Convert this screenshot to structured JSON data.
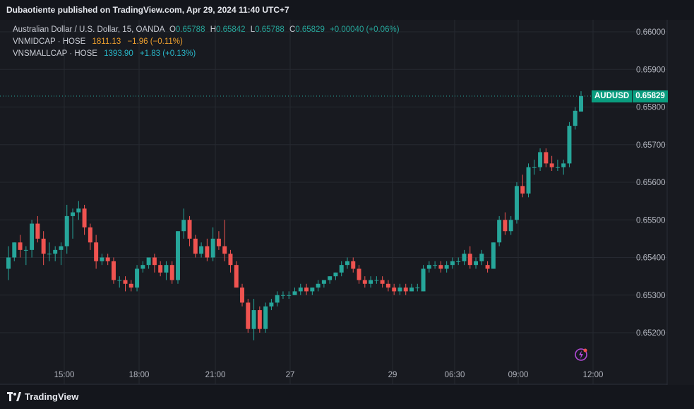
{
  "header": {
    "published": "Dubaotiente published on TradingView.com, Apr 29, 2024 11:40 UTC+7"
  },
  "legend": {
    "main": {
      "name": "Australian Dollar / U.S. Dollar, 15, OANDA",
      "o_label": "O",
      "o": "0.65788",
      "h_label": "H",
      "h": "0.65842",
      "l_label": "L",
      "l": "0.65788",
      "c_label": "C",
      "c": "0.65829",
      "change": "+0.00040 (+0.06%)"
    },
    "mid": {
      "name": "VNMIDCAP · HOSE",
      "value": "1811.13",
      "change": "−1.96 (−0.11%)"
    },
    "small": {
      "name": "VNSMALLCAP · HOSE",
      "value": "1393.90",
      "change": "+1.83 (+0.13%)"
    }
  },
  "price_tag": {
    "symbol": "AUDUSD",
    "value": "0.65829"
  },
  "footer": {
    "brand": "TradingView"
  },
  "colors": {
    "up": "#26a69a",
    "down": "#ef5350",
    "grid": "#262931",
    "axis_text": "#b2b5be",
    "background": "#181a20"
  },
  "chart_data": {
    "type": "candlestick",
    "title": "Australian Dollar / U.S. Dollar, 15, OANDA",
    "y_ticks": [
      "0.66000",
      "0.65900",
      "0.65800",
      "0.65700",
      "0.65600",
      "0.65500",
      "0.65400",
      "0.65300",
      "0.65200"
    ],
    "x_ticks": [
      "15:00",
      "18:00",
      "21:00",
      "27",
      "29",
      "06:30",
      "09:00",
      "12:00"
    ],
    "ylim": [
      0.6515,
      0.6604
    ],
    "grid": true,
    "last_price": 0.65829,
    "candles": [
      [
        0.6537,
        0.6543,
        0.6534,
        0.654
      ],
      [
        0.654,
        0.6544,
        0.6539,
        0.6544
      ],
      [
        0.6544,
        0.6546,
        0.654,
        0.6542
      ],
      [
        0.6542,
        0.6543,
        0.6538,
        0.6542
      ],
      [
        0.6542,
        0.655,
        0.654,
        0.6549
      ],
      [
        0.6549,
        0.6551,
        0.6544,
        0.6545
      ],
      [
        0.6545,
        0.6547,
        0.6538,
        0.6541
      ],
      [
        0.6541,
        0.6544,
        0.6539,
        0.6541
      ],
      [
        0.6541,
        0.6543,
        0.6539,
        0.6542
      ],
      [
        0.6542,
        0.6544,
        0.6538,
        0.6543
      ],
      [
        0.6543,
        0.6554,
        0.6541,
        0.6551
      ],
      [
        0.6551,
        0.6553,
        0.6545,
        0.6552
      ],
      [
        0.6552,
        0.6555,
        0.655,
        0.6553
      ],
      [
        0.6553,
        0.6554,
        0.6546,
        0.6548
      ],
      [
        0.6548,
        0.6549,
        0.6542,
        0.6544
      ],
      [
        0.6544,
        0.6546,
        0.6537,
        0.6539
      ],
      [
        0.6539,
        0.6541,
        0.6538,
        0.654
      ],
      [
        0.654,
        0.6541,
        0.6538,
        0.6539
      ],
      [
        0.6539,
        0.654,
        0.6533,
        0.6534
      ],
      [
        0.6534,
        0.6535,
        0.6532,
        0.6534
      ],
      [
        0.6534,
        0.6535,
        0.6531,
        0.6533
      ],
      [
        0.6533,
        0.6534,
        0.6531,
        0.6532
      ],
      [
        0.6532,
        0.6538,
        0.6531,
        0.6537
      ],
      [
        0.6537,
        0.6539,
        0.6536,
        0.6538
      ],
      [
        0.6538,
        0.654,
        0.6537,
        0.654
      ],
      [
        0.654,
        0.6541,
        0.6536,
        0.6538
      ],
      [
        0.6538,
        0.6539,
        0.6535,
        0.6536
      ],
      [
        0.6536,
        0.6539,
        0.6534,
        0.6538
      ],
      [
        0.6538,
        0.6539,
        0.6533,
        0.6534
      ],
      [
        0.6534,
        0.6547,
        0.6533,
        0.6547
      ],
      [
        0.6547,
        0.6553,
        0.6545,
        0.655
      ],
      [
        0.655,
        0.6551,
        0.6543,
        0.6545
      ],
      [
        0.6545,
        0.6546,
        0.654,
        0.6541
      ],
      [
        0.6541,
        0.6544,
        0.654,
        0.6543
      ],
      [
        0.6543,
        0.6545,
        0.6539,
        0.654
      ],
      [
        0.654,
        0.6548,
        0.6539,
        0.6545
      ],
      [
        0.6545,
        0.6547,
        0.6542,
        0.6543
      ],
      [
        0.6543,
        0.655,
        0.6539,
        0.6541
      ],
      [
        0.6541,
        0.6542,
        0.6536,
        0.6538
      ],
      [
        0.6538,
        0.6539,
        0.6532,
        0.6532
      ],
      [
        0.6532,
        0.6533,
        0.6527,
        0.6528
      ],
      [
        0.6528,
        0.6529,
        0.652,
        0.6521
      ],
      [
        0.6521,
        0.6529,
        0.6518,
        0.6526
      ],
      [
        0.6526,
        0.6527,
        0.652,
        0.6521
      ],
      [
        0.6521,
        0.6528,
        0.652,
        0.6527
      ],
      [
        0.6527,
        0.6529,
        0.6526,
        0.6528
      ],
      [
        0.6528,
        0.6531,
        0.6527,
        0.653
      ],
      [
        0.653,
        0.6531,
        0.6529,
        0.653
      ],
      [
        0.653,
        0.6531,
        0.6529,
        0.653
      ],
      [
        0.653,
        0.6532,
        0.653,
        0.6531
      ],
      [
        0.6531,
        0.6533,
        0.653,
        0.6532
      ],
      [
        0.6532,
        0.6533,
        0.653,
        0.6531
      ],
      [
        0.6531,
        0.6532,
        0.653,
        0.6532
      ],
      [
        0.6532,
        0.6534,
        0.6531,
        0.6533
      ],
      [
        0.6533,
        0.6534,
        0.6532,
        0.6534
      ],
      [
        0.6534,
        0.6535,
        0.6533,
        0.6535
      ],
      [
        0.6535,
        0.6536,
        0.6534,
        0.6536
      ],
      [
        0.6536,
        0.6539,
        0.6535,
        0.6538
      ],
      [
        0.6538,
        0.654,
        0.6537,
        0.6539
      ],
      [
        0.6539,
        0.654,
        0.6536,
        0.6537
      ],
      [
        0.6537,
        0.6538,
        0.6533,
        0.6534
      ],
      [
        0.6534,
        0.6535,
        0.6532,
        0.6533
      ],
      [
        0.6533,
        0.6535,
        0.6532,
        0.6534
      ],
      [
        0.6534,
        0.6535,
        0.6533,
        0.6534
      ],
      [
        0.6534,
        0.6535,
        0.6532,
        0.6533
      ],
      [
        0.6533,
        0.6534,
        0.6531,
        0.6532
      ],
      [
        0.6532,
        0.6533,
        0.653,
        0.6531
      ],
      [
        0.6531,
        0.6533,
        0.653,
        0.6532
      ],
      [
        0.6532,
        0.6533,
        0.653,
        0.6531
      ],
      [
        0.6531,
        0.6533,
        0.6531,
        0.6532
      ],
      [
        0.6532,
        0.6533,
        0.6531,
        0.6532
      ],
      [
        0.6531,
        0.6538,
        0.6531,
        0.6537
      ],
      [
        0.6537,
        0.6539,
        0.6536,
        0.6538
      ],
      [
        0.6538,
        0.6539,
        0.6537,
        0.6538
      ],
      [
        0.6538,
        0.6539,
        0.6536,
        0.6537
      ],
      [
        0.6537,
        0.6539,
        0.6536,
        0.6538
      ],
      [
        0.6538,
        0.654,
        0.6537,
        0.6539
      ],
      [
        0.6539,
        0.654,
        0.6538,
        0.6539
      ],
      [
        0.6539,
        0.6542,
        0.6538,
        0.6541
      ],
      [
        0.6541,
        0.6543,
        0.6537,
        0.6538
      ],
      [
        0.6538,
        0.654,
        0.6537,
        0.6539
      ],
      [
        0.6539,
        0.6542,
        0.6538,
        0.6541
      ],
      [
        0.6538,
        0.6539,
        0.6536,
        0.6537
      ],
      [
        0.6537,
        0.6544,
        0.6537,
        0.6544
      ],
      [
        0.6544,
        0.6551,
        0.6543,
        0.655
      ],
      [
        0.655,
        0.6552,
        0.6546,
        0.6547
      ],
      [
        0.6547,
        0.6551,
        0.6546,
        0.655
      ],
      [
        0.655,
        0.656,
        0.6549,
        0.6559
      ],
      [
        0.6559,
        0.6562,
        0.6556,
        0.6557
      ],
      [
        0.6557,
        0.6565,
        0.6556,
        0.6564
      ],
      [
        0.6564,
        0.6566,
        0.6562,
        0.6564
      ],
      [
        0.6564,
        0.6569,
        0.6563,
        0.6568
      ],
      [
        0.6568,
        0.6569,
        0.6564,
        0.6565
      ],
      [
        0.6565,
        0.6567,
        0.6563,
        0.6564
      ],
      [
        0.6564,
        0.6566,
        0.6563,
        0.6564
      ],
      [
        0.6564,
        0.6566,
        0.6562,
        0.6565
      ],
      [
        0.6565,
        0.6576,
        0.6564,
        0.6575
      ],
      [
        0.6575,
        0.658,
        0.6574,
        0.6579
      ],
      [
        0.65788,
        0.65842,
        0.65788,
        0.65829
      ]
    ]
  }
}
